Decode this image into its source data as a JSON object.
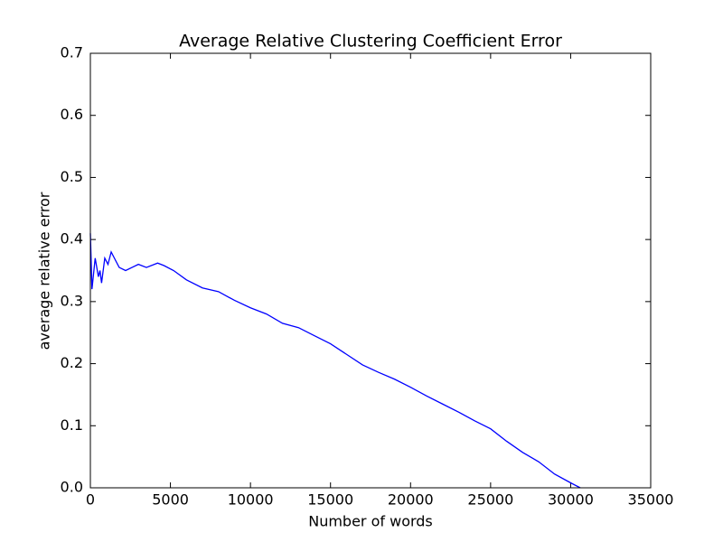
{
  "chart_data": {
    "type": "line",
    "title": "Average Relative Clustering Coefficient Error",
    "xlabel": "Number of words",
    "ylabel": "average relative error",
    "color": "#0000ff",
    "x": [
      0,
      100,
      300,
      500,
      600,
      700,
      900,
      1100,
      1300,
      1500,
      1800,
      2200,
      2600,
      3000,
      3500,
      4200,
      4600,
      5200,
      6000,
      7000,
      8000,
      9000,
      10000,
      11000,
      12000,
      13000,
      14000,
      15000,
      16000,
      17000,
      18000,
      19000,
      20000,
      21000,
      22000,
      23000,
      24000,
      25000,
      26000,
      27000,
      28000,
      29000,
      30000,
      30600
    ],
    "values": [
      0.41,
      0.32,
      0.37,
      0.34,
      0.35,
      0.33,
      0.37,
      0.36,
      0.38,
      0.37,
      0.355,
      0.35,
      0.355,
      0.36,
      0.355,
      0.362,
      0.358,
      0.35,
      0.335,
      0.322,
      0.316,
      0.302,
      0.29,
      0.28,
      0.265,
      0.258,
      0.245,
      0.232,
      0.215,
      0.198,
      0.186,
      0.175,
      0.162,
      0.148,
      0.135,
      0.122,
      0.108,
      0.095,
      0.075,
      0.057,
      0.042,
      0.022,
      0.008,
      0.0
    ],
    "xlim": [
      0,
      35000
    ],
    "xticks": [
      0,
      5000,
      10000,
      15000,
      20000,
      25000,
      30000,
      35000
    ],
    "ylim": [
      0,
      0.7
    ],
    "yticks": [
      {
        "value": 0,
        "label": "0.0"
      },
      0.1,
      0.2,
      0.3,
      0.4,
      0.5,
      0.6,
      0.7
    ]
  }
}
